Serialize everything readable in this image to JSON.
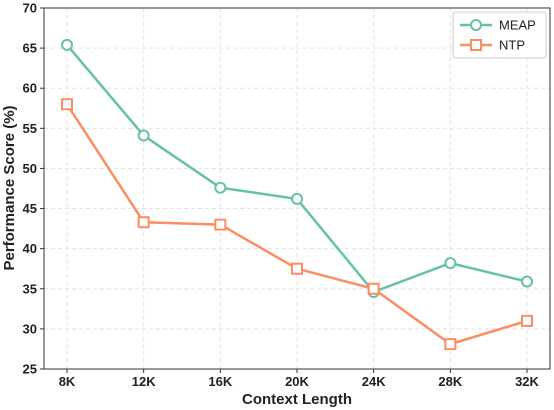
{
  "chart_data": {
    "type": "line",
    "title": "",
    "xlabel": "Context Length",
    "ylabel": "Performance Score (%)",
    "categories": [
      "8K",
      "12K",
      "16K",
      "20K",
      "24K",
      "28K",
      "32K"
    ],
    "ylim": [
      25,
      70
    ],
    "yticks": [
      25,
      30,
      35,
      40,
      45,
      50,
      55,
      60,
      65,
      70
    ],
    "grid": true,
    "legend_position": "top-right",
    "series": [
      {
        "name": "MEAP",
        "values": [
          65.4,
          54.1,
          47.6,
          46.2,
          34.6,
          38.2,
          35.9
        ],
        "color": "#66c2a5",
        "marker": "circle"
      },
      {
        "name": "NTP",
        "values": [
          58.0,
          43.3,
          43.0,
          37.5,
          35.0,
          28.1,
          31.0
        ],
        "color": "#fc8d62",
        "marker": "square"
      }
    ]
  }
}
